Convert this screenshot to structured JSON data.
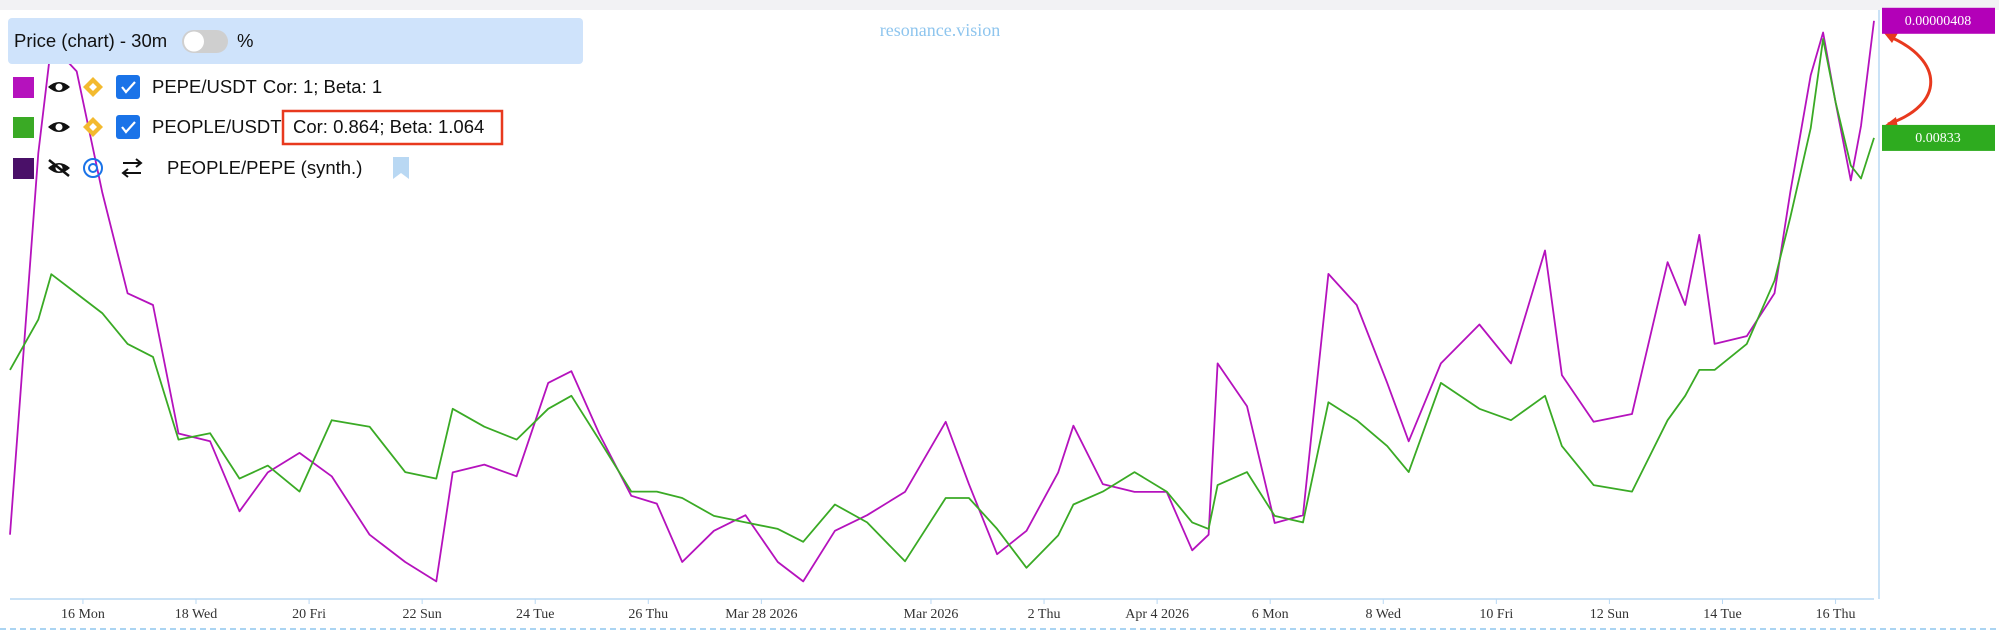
{
  "chart_data": {
    "type": "line",
    "title": "Price (chart) - 30m",
    "toggle_label": "%",
    "watermark": "resonance.vision",
    "x": [
      -1.29,
      -0.79,
      -0.56,
      -0.11,
      0.34,
      0.79,
      1.24,
      1.69,
      2.25,
      2.77,
      3.27,
      3.83,
      4.4,
      5.07,
      5.7,
      6.25,
      6.54,
      7.1,
      7.67,
      8.23,
      8.64,
      9.13,
      9.7,
      10.15,
      10.6,
      11.16,
      11.72,
      12.29,
      12.74,
      13.3,
      13.87,
      14.54,
      15.26,
      15.67,
      16.17,
      16.69,
      17.25,
      17.52,
      18.04,
      18.6,
      19.17,
      19.62,
      19.91,
      20.07,
      20.59,
      21.08,
      21.58,
      22.03,
      22.53,
      23.07,
      23.45,
      24.02,
      24.7,
      25.26,
      25.86,
      26.16,
      26.72,
      27.4,
      28.03,
      28.34,
      28.59,
      28.86,
      29.43,
      29.92,
      30.2,
      30.56,
      30.78,
      31,
      31.27,
      31.45,
      31.68
    ],
    "xlim": [
      -1.29,
      31.68
    ],
    "xticks": [
      {
        "value": 0,
        "label": "16 Mon"
      },
      {
        "value": 2,
        "label": "18 Wed"
      },
      {
        "value": 4,
        "label": "20 Fri"
      },
      {
        "value": 6,
        "label": "22 Sun"
      },
      {
        "value": 8,
        "label": "24 Tue"
      },
      {
        "value": 10,
        "label": "26 Thu"
      },
      {
        "value": 12,
        "label": "Mar 28 2026"
      },
      {
        "value": 15,
        "label": "Mar 2026"
      },
      {
        "value": 17,
        "label": "2 Thu"
      },
      {
        "value": 19,
        "label": "Apr 4 2026"
      },
      {
        "value": 21,
        "label": "6 Mon"
      },
      {
        "value": 23,
        "label": "8 Wed"
      },
      {
        "value": 25,
        "label": "10 Fri"
      },
      {
        "value": 27,
        "label": "12 Sun"
      },
      {
        "value": 29,
        "label": "14 Tue"
      },
      {
        "value": 31,
        "label": "16 Thu"
      }
    ],
    "series": [
      {
        "name": "PEPE/USDT",
        "stats": "Cor: 1; Beta: 1",
        "color": "#b512bd",
        "badge_color": "#b300b8",
        "ylim": [
          2.6e-06,
          4.1e-06
        ],
        "values": [
          2.76e-06,
          3.74e-06,
          4.02e-06,
          3.95e-06,
          3.64e-06,
          3.38e-06,
          3.35e-06,
          3.02e-06,
          3e-06,
          2.82e-06,
          2.92e-06,
          2.97e-06,
          2.91e-06,
          2.76e-06,
          2.69e-06,
          2.64e-06,
          2.92e-06,
          2.94e-06,
          2.91e-06,
          3.15e-06,
          3.18e-06,
          3.02e-06,
          2.86e-06,
          2.84e-06,
          2.69e-06,
          2.77e-06,
          2.81e-06,
          2.69e-06,
          2.64e-06,
          2.77e-06,
          2.81e-06,
          2.87e-06,
          3.05e-06,
          2.89e-06,
          2.71e-06,
          2.77e-06,
          2.92e-06,
          3.04e-06,
          2.89e-06,
          2.87e-06,
          2.87e-06,
          2.72e-06,
          2.76e-06,
          3.2e-06,
          3.09e-06,
          2.79e-06,
          2.81e-06,
          3.43e-06,
          3.35e-06,
          3.15e-06,
          3e-06,
          3.2e-06,
          3.3e-06,
          3.2e-06,
          3.49e-06,
          3.17e-06,
          3.05e-06,
          3.07e-06,
          3.46e-06,
          3.35e-06,
          3.53e-06,
          3.25e-06,
          3.27e-06,
          3.38e-06,
          3.64e-06,
          3.94e-06,
          4.05e-06,
          3.87e-06,
          3.67e-06,
          3.81e-06,
          4.08e-06
        ]
      },
      {
        "name": "PEOPLE/USDT",
        "stats": "Cor: 0.864; Beta: 1.064",
        "color": "#3aaa25",
        "badge_color": "#2eab1f",
        "ylim": [
          0.0055,
          0.0091
        ],
        "values": [
          0.0069,
          0.00721,
          0.00749,
          0.00737,
          0.00725,
          0.00706,
          0.00698,
          0.00647,
          0.00651,
          0.00623,
          0.00631,
          0.00615,
          0.00659,
          0.00655,
          0.00627,
          0.00623,
          0.00666,
          0.00655,
          0.00647,
          0.00666,
          0.00674,
          0.00647,
          0.00615,
          0.00615,
          0.00611,
          0.006,
          0.00596,
          0.00592,
          0.00584,
          0.00607,
          0.00596,
          0.00572,
          0.00611,
          0.00611,
          0.00592,
          0.00568,
          0.00588,
          0.00607,
          0.00615,
          0.00627,
          0.00615,
          0.00596,
          0.00592,
          0.00619,
          0.00627,
          0.006,
          0.00596,
          0.0067,
          0.00659,
          0.00643,
          0.00627,
          0.00682,
          0.00666,
          0.00659,
          0.00674,
          0.00643,
          0.00619,
          0.00615,
          0.00659,
          0.00674,
          0.0069,
          0.0069,
          0.00706,
          0.00745,
          0.00784,
          0.00839,
          0.00894,
          0.00855,
          0.00816,
          0.00808,
          0.00833
        ]
      }
    ],
    "synthetic": {
      "name": "PEOPLE/PEPE (synth.)",
      "color": "#4a1068"
    }
  }
}
